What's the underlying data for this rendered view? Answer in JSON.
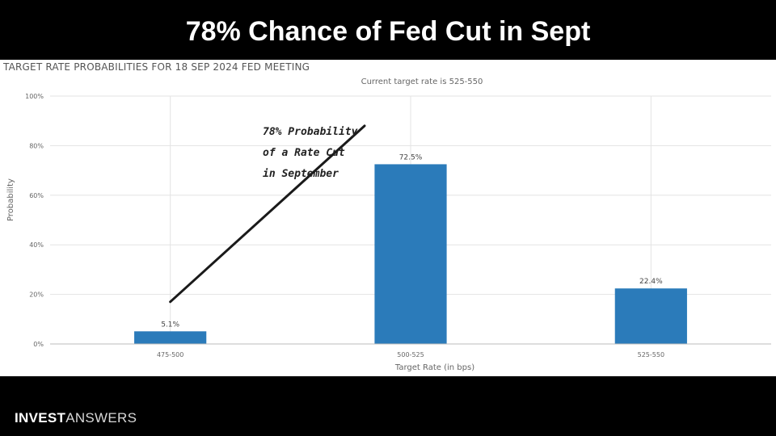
{
  "headline": "78% Chance of Fed Cut in Sept",
  "brand": {
    "bold": "INVEST",
    "light": "ANSWERS"
  },
  "chart_data": {
    "type": "bar",
    "title": "TARGET RATE PROBABILITIES FOR 18 SEP 2024 FED MEETING",
    "subtitle": "Current target rate is 525-550",
    "xlabel": "Target Rate (in bps)",
    "ylabel": "Probability",
    "categories": [
      "475-500",
      "500-525",
      "525-550"
    ],
    "values": [
      5.1,
      72.5,
      22.4
    ],
    "value_labels": [
      "5.1%",
      "72.5%",
      "22.4%"
    ],
    "ylim": [
      0,
      100
    ],
    "yticks": [
      0,
      20,
      40,
      60,
      80,
      100
    ],
    "ytick_labels": [
      "0%",
      "20%",
      "40%",
      "60%",
      "80%",
      "100%"
    ],
    "grid": true,
    "bar_color": "#2b7bba",
    "annotation": {
      "lines": [
        "78% Probability",
        "of a Rate Cut",
        "in September"
      ],
      "arrow_from": {
        "category": "475-500",
        "value": 17
      },
      "arrow_to": {
        "category_position": 1.5,
        "value": 88
      }
    }
  }
}
